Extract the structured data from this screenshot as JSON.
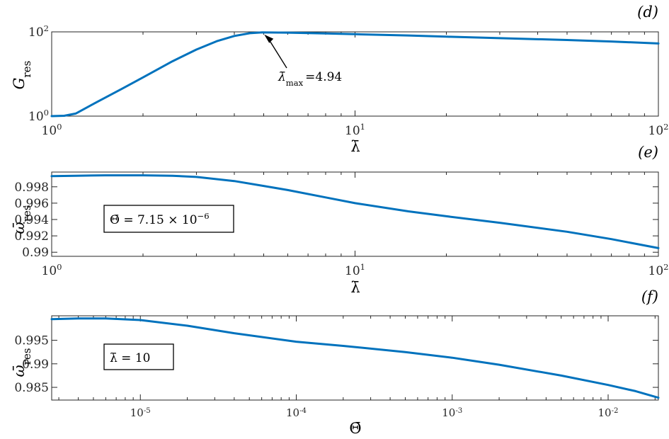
{
  "chart_data": [
    {
      "type": "line",
      "panel_label": "(d)",
      "xlabel": "λ̄",
      "ylabel": "G_res",
      "xscale": "log",
      "yscale": "log",
      "xlim": [
        1,
        100
      ],
      "ylim": [
        1,
        100
      ],
      "x_ticks": [
        {
          "value": 1,
          "base": "10",
          "exp": "0"
        },
        {
          "value": 10,
          "base": "10",
          "exp": "1"
        },
        {
          "value": 100,
          "base": "10",
          "exp": "2"
        }
      ],
      "y_ticks": [
        {
          "value": 1,
          "base": "10",
          "exp": "0"
        },
        {
          "value": 100,
          "base": "10",
          "exp": "2"
        }
      ],
      "color": "#0072BD",
      "series": [
        {
          "x": [
            1.0,
            1.1,
            1.2,
            1.4,
            1.7,
            2.0,
            2.5,
            3.0,
            3.5,
            4.0,
            4.5,
            4.94,
            6,
            8,
            10,
            15,
            20,
            30,
            50,
            70,
            100
          ],
          "y": [
            1.0,
            1.02,
            1.15,
            2.1,
            4.4,
            8.3,
            20,
            38,
            60,
            80,
            93,
            97,
            96,
            92,
            88,
            82,
            77,
            71,
            64,
            59,
            53
          ]
        }
      ],
      "annotation": {
        "text": "=4.94",
        "symbol": "λ̄",
        "subscript": "max",
        "x": 4.94,
        "y": 97
      }
    },
    {
      "type": "line",
      "panel_label": "(e)",
      "xlabel": "λ̄",
      "ylabel": "ω̄_res",
      "xscale": "log",
      "xlim": [
        1,
        100
      ],
      "ylim": [
        0.9895,
        0.9998
      ],
      "x_ticks": [
        {
          "value": 1,
          "base": "10",
          "exp": "0"
        },
        {
          "value": 10,
          "base": "10",
          "exp": "1"
        },
        {
          "value": 100,
          "base": "10",
          "exp": "2"
        }
      ],
      "y_ticks": [
        {
          "value": 0.99,
          "label": "0.99"
        },
        {
          "value": 0.992,
          "label": "0.992"
        },
        {
          "value": 0.994,
          "label": "0.994"
        },
        {
          "value": 0.996,
          "label": "0.996"
        },
        {
          "value": 0.998,
          "label": "0.998"
        }
      ],
      "color": "#0072BD",
      "series": [
        {
          "x": [
            1.0,
            1.2,
            1.5,
            2.0,
            2.5,
            3.0,
            4.0,
            5.0,
            6.0,
            8.0,
            10,
            15,
            20,
            30,
            50,
            70,
            100
          ],
          "y": [
            0.9993,
            0.99935,
            0.9994,
            0.9994,
            0.99935,
            0.9992,
            0.9987,
            0.9981,
            0.9976,
            0.9967,
            0.996,
            0.995,
            0.9944,
            0.9936,
            0.9925,
            0.9916,
            0.9905
          ]
        }
      ],
      "legend": {
        "text": "Θ̄ = 7.15 × 10",
        "exp": "−6"
      }
    },
    {
      "type": "line",
      "panel_label": "(f)",
      "xlabel": "Θ̄",
      "ylabel": "ω̄_res",
      "xscale": "log",
      "xlim": [
        2.7e-06,
        0.021
      ],
      "ylim": [
        0.9823,
        1.0002
      ],
      "x_ticks": [
        {
          "value": 1e-05,
          "base": "10",
          "exp": "-5"
        },
        {
          "value": 0.0001,
          "base": "10",
          "exp": "-4"
        },
        {
          "value": 0.001,
          "base": "10",
          "exp": "-3"
        },
        {
          "value": 0.01,
          "base": "10",
          "exp": "-2"
        }
      ],
      "y_ticks": [
        {
          "value": 0.985,
          "label": "0.985"
        },
        {
          "value": 0.99,
          "label": "0.99"
        },
        {
          "value": 0.995,
          "label": "0.995"
        }
      ],
      "color": "#0072BD",
      "series": [
        {
          "x": [
            2.7e-06,
            4e-06,
            6e-06,
            1e-05,
            2e-05,
            4e-05,
            0.0001,
            0.0002,
            0.0005,
            0.001,
            0.002,
            0.005,
            0.01,
            0.015,
            0.021
          ],
          "y": [
            0.9995,
            0.99965,
            0.99965,
            0.9993,
            0.9981,
            0.9965,
            0.9947,
            0.9938,
            0.9925,
            0.9913,
            0.9898,
            0.9875,
            0.9855,
            0.9842,
            0.9828
          ]
        }
      ],
      "legend": {
        "text": "λ̄ = 10"
      }
    }
  ]
}
